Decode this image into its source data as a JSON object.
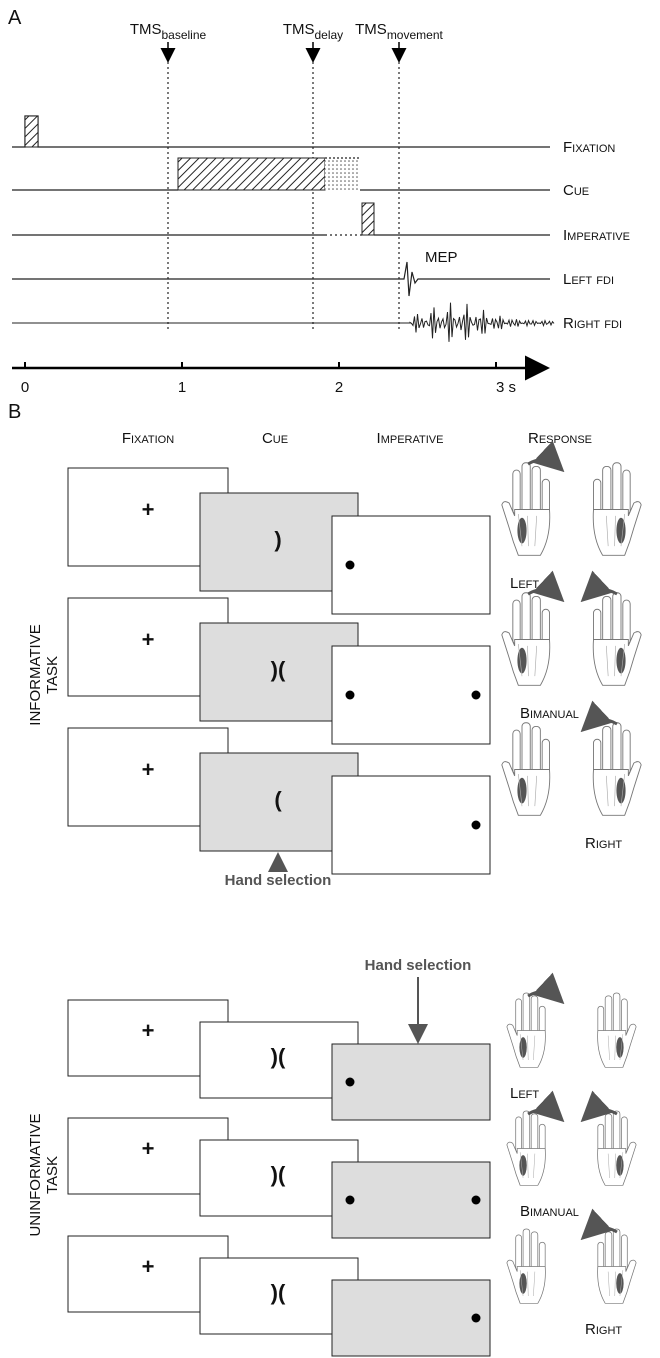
{
  "panel_a": {
    "label": "A",
    "tms": [
      {
        "main": "TMS",
        "sub": "baseline"
      },
      {
        "main": "TMS",
        "sub": "delay"
      },
      {
        "main": "TMS",
        "sub": "movement"
      }
    ],
    "traces": [
      "Fixation",
      "Cue",
      "Imperative",
      "Left fdi",
      "Right fdi"
    ],
    "mep": "MEP",
    "time_ticks": [
      0,
      1,
      2,
      {
        "value": 3,
        "label": "3 s"
      }
    ]
  },
  "panel_b": {
    "label": "B",
    "headers": [
      "Fixation",
      "Cue",
      "Imperative",
      "Response"
    ],
    "tasks": [
      {
        "name": [
          "INFORMATIVE",
          "TASK"
        ],
        "hand_selection": "Hand selection",
        "trials": [
          {
            "fixation": "+",
            "cue": ")",
            "response": "Left"
          },
          {
            "fixation": "+",
            "cue": ")(",
            "response": "Bimanual"
          },
          {
            "fixation": "+",
            "cue": "(",
            "response": "Right"
          }
        ]
      },
      {
        "name": [
          "UNINFORMATIVE",
          "TASK"
        ],
        "hand_selection": "Hand selection",
        "trials": [
          {
            "fixation": "+",
            "cue": ")(",
            "response": "Left"
          },
          {
            "fixation": "+",
            "cue": ")(",
            "response": "Bimanual"
          },
          {
            "fixation": "+",
            "cue": ")(",
            "response": "Right"
          }
        ]
      }
    ]
  }
}
